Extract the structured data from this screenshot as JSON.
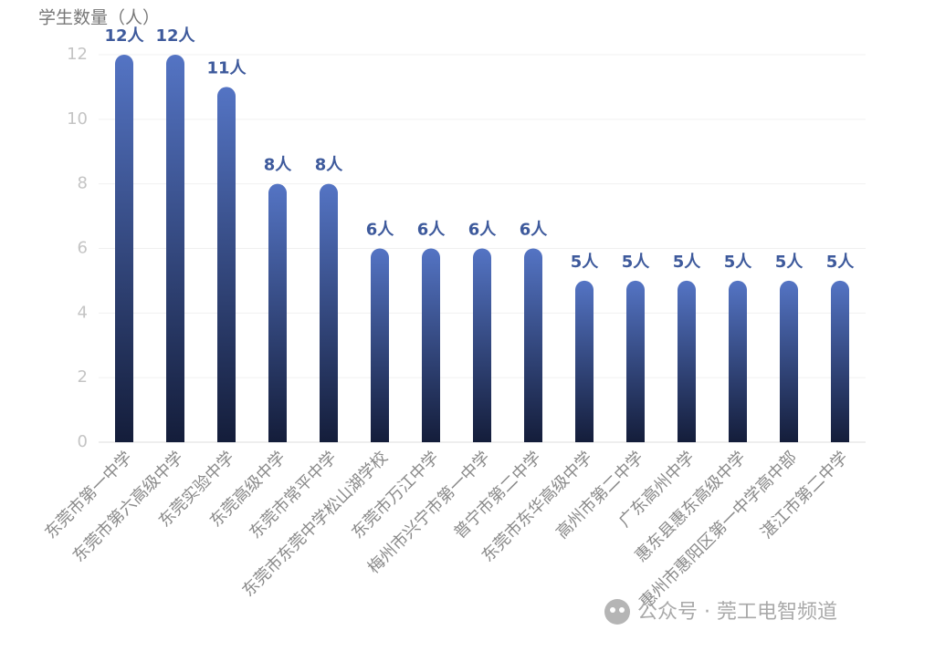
{
  "chart_data": {
    "type": "bar",
    "y_axis_label": "学生数量（人）",
    "categories": [
      "东莞市第一中学",
      "东莞市第六高级中学",
      "东莞实验中学",
      "东莞高级中学",
      "东莞市常平中学",
      "东莞市东莞中学松山湖学校",
      "东莞市万江中学",
      "梅州市兴宁市第一中学",
      "普宁市第二中学",
      "东莞市东华高级中学",
      "高州市第二中学",
      "广东高州中学",
      "惠东县惠东高级中学",
      "惠州市惠阳区第一中学高中部",
      "湛江市第二中学"
    ],
    "values": [
      12,
      12,
      11,
      8,
      8,
      6,
      6,
      6,
      6,
      5,
      5,
      5,
      5,
      5,
      5
    ],
    "value_labels": [
      "12人",
      "12人",
      "11人",
      "8人",
      "8人",
      "6人",
      "6人",
      "6人",
      "6人",
      "5人",
      "5人",
      "5人",
      "5人",
      "5人",
      "5人"
    ],
    "color": [
      "#5474c4",
      "#141d3a"
    ],
    "ylim": [
      0,
      12
    ],
    "yticks": [
      0,
      2,
      4,
      6,
      8,
      10,
      12
    ],
    "grid": true
  },
  "watermark": "公众号 · 莞工电智频道"
}
